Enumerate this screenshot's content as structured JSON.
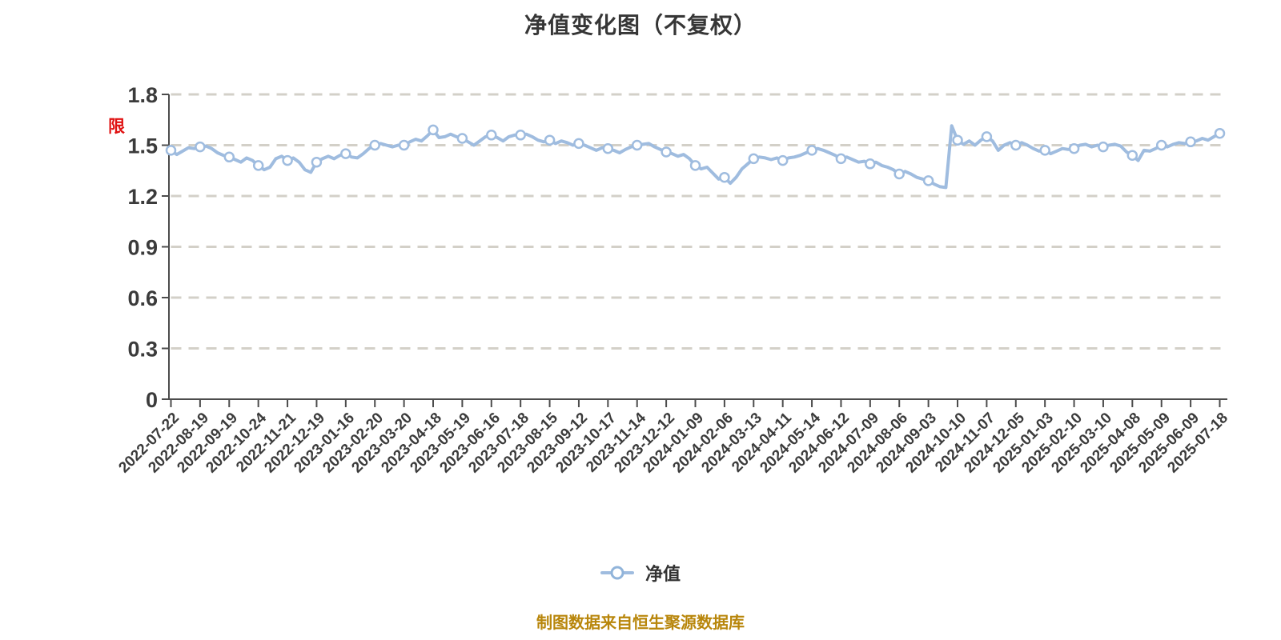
{
  "title": "净值变化图（不复权）",
  "annotation": {
    "restriction_marker": "限",
    "color": "#e01212"
  },
  "legend": {
    "label": "净值"
  },
  "footer": {
    "text": "制图数据来自恒生聚源数据库",
    "color": "#b8860b"
  },
  "colors": {
    "line": "#9fbcdf",
    "marker_fill": "#ffffff",
    "grid_dash": "#d3d0c8",
    "axis": "#4c4c4c",
    "text": "#3b3b3b",
    "title": "#363636",
    "footer": "#b8860b",
    "restriction": "#e01212"
  },
  "chart_data": {
    "type": "line",
    "title": "净值变化图（不复权）",
    "series_name": "净值",
    "xlabel": "",
    "ylabel": "",
    "ylim": [
      0,
      1.8
    ],
    "yticks": [
      0,
      0.3,
      0.6,
      0.9,
      1.2,
      1.5,
      1.8
    ],
    "grid": "dashed-horizontal",
    "legend_position": "bottom",
    "categories": [
      "2022-07-22",
      "2022-08-19",
      "2022-09-19",
      "2022-10-24",
      "2022-11-21",
      "2022-12-19",
      "2023-01-16",
      "2023-02-20",
      "2023-03-20",
      "2023-04-18",
      "2023-05-19",
      "2023-06-16",
      "2023-07-18",
      "2023-08-15",
      "2023-09-12",
      "2023-10-17",
      "2023-11-14",
      "2023-12-12",
      "2024-01-09",
      "2024-02-06",
      "2024-03-13",
      "2024-04-11",
      "2024-05-14",
      "2024-06-12",
      "2024-07-09",
      "2024-08-06",
      "2024-09-03",
      "2024-10-10",
      "2024-11-07",
      "2024-12-05",
      "2025-01-03",
      "2025-02-10",
      "2025-03-10",
      "2025-04-08",
      "2025-05-09",
      "2025-06-09",
      "2025-07-18"
    ],
    "values": [
      1.47,
      1.49,
      1.43,
      1.38,
      1.41,
      1.4,
      1.45,
      1.5,
      1.5,
      1.59,
      1.54,
      1.56,
      1.56,
      1.53,
      1.51,
      1.48,
      1.5,
      1.46,
      1.38,
      1.31,
      1.42,
      1.41,
      1.47,
      1.42,
      1.39,
      1.33,
      1.29,
      1.53,
      1.55,
      1.5,
      1.47,
      1.48,
      1.49,
      1.44,
      1.5,
      1.52,
      1.57
    ],
    "values_daily": [
      1.47,
      1.445,
      1.465,
      1.485,
      1.48,
      1.49,
      1.495,
      1.48,
      1.455,
      1.44,
      1.43,
      1.415,
      1.4,
      1.425,
      1.41,
      1.38,
      1.355,
      1.37,
      1.42,
      1.435,
      1.41,
      1.425,
      1.4,
      1.355,
      1.34,
      1.4,
      1.42,
      1.435,
      1.42,
      1.44,
      1.45,
      1.43,
      1.425,
      1.45,
      1.48,
      1.5,
      1.51,
      1.5,
      1.49,
      1.5,
      1.5,
      1.52,
      1.535,
      1.525,
      1.555,
      1.59,
      1.545,
      1.55,
      1.565,
      1.55,
      1.54,
      1.52,
      1.5,
      1.525,
      1.55,
      1.56,
      1.545,
      1.525,
      1.55,
      1.56,
      1.56,
      1.565,
      1.55,
      1.53,
      1.52,
      1.53,
      1.51,
      1.525,
      1.515,
      1.5,
      1.51,
      1.5,
      1.485,
      1.47,
      1.485,
      1.48,
      1.47,
      1.455,
      1.475,
      1.49,
      1.5,
      1.505,
      1.51,
      1.49,
      1.475,
      1.46,
      1.45,
      1.435,
      1.445,
      1.42,
      1.38,
      1.36,
      1.37,
      1.335,
      1.3,
      1.31,
      1.275,
      1.31,
      1.36,
      1.39,
      1.42,
      1.43,
      1.425,
      1.415,
      1.425,
      1.41,
      1.425,
      1.43,
      1.44,
      1.455,
      1.47,
      1.48,
      1.47,
      1.455,
      1.44,
      1.42,
      1.43,
      1.415,
      1.4,
      1.405,
      1.39,
      1.4,
      1.38,
      1.37,
      1.355,
      1.33,
      1.345,
      1.33,
      1.31,
      1.3,
      1.29,
      1.27,
      1.255,
      1.25,
      1.615,
      1.53,
      1.505,
      1.525,
      1.5,
      1.53,
      1.55,
      1.525,
      1.47,
      1.5,
      1.515,
      1.5,
      1.515,
      1.5,
      1.48,
      1.465,
      1.47,
      1.45,
      1.465,
      1.48,
      1.475,
      1.48,
      1.5,
      1.505,
      1.49,
      1.5,
      1.49,
      1.5,
      1.505,
      1.495,
      1.46,
      1.44,
      1.41,
      1.47,
      1.465,
      1.48,
      1.5,
      1.49,
      1.505,
      1.515,
      1.51,
      1.52,
      1.525,
      1.54,
      1.53,
      1.55,
      1.57
    ]
  }
}
